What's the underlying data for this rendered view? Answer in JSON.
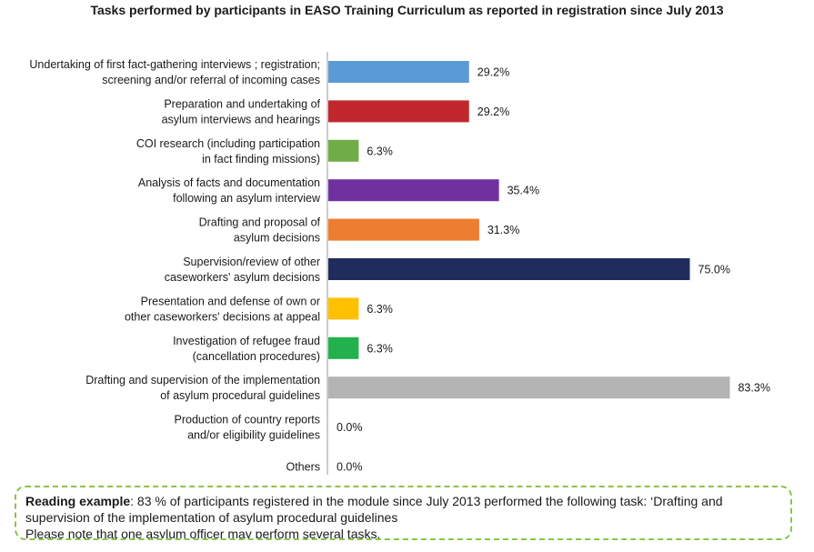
{
  "chart_data": {
    "type": "bar",
    "orientation": "horizontal",
    "title": "Tasks performed by participants in EASO Training Curriculum as reported in registration since July 2013",
    "categories": [
      [
        "Undertaking of first fact-gathering interviews ; registration;",
        "screening and/or referral of incoming cases"
      ],
      [
        "Preparation and undertaking of",
        "asylum interviews and hearings"
      ],
      [
        "COI research (including participation",
        "in fact finding missions)"
      ],
      [
        "Analysis of facts and documentation",
        "following an asylum interview"
      ],
      [
        "Drafting and proposal of",
        "asylum decisions"
      ],
      [
        "Supervision/review of other",
        "caseworkers' asylum decisions"
      ],
      [
        "Presentation and defense of own or",
        "other caseworkers' decisions at appeal"
      ],
      [
        "Investigation of refugee fraud",
        "(cancellation procedures)"
      ],
      [
        "Drafting and supervision of the implementation",
        "of asylum procedural guidelines"
      ],
      [
        "Production of country reports",
        "and/or eligibility guidelines"
      ],
      [
        "Others"
      ]
    ],
    "values": [
      29.2,
      29.2,
      6.3,
      35.4,
      31.3,
      75.0,
      6.3,
      6.3,
      83.3,
      0.0,
      0.0
    ],
    "value_labels": [
      "29.2%",
      "29.2%",
      "6.3%",
      "35.4%",
      "31.3%",
      "75.0%",
      "6.3%",
      "6.3%",
      "83.3%",
      "0.0%",
      "0.0%"
    ],
    "colors": [
      "#5b9bd5",
      "#c0282d",
      "#70ad47",
      "#7030a0",
      "#ed7d31",
      "#1f2d5c",
      "#ffc000",
      "#23b14d",
      "#b4b4b4",
      "#b4b4b4",
      "#b4b4b4"
    ],
    "xlim": [
      0,
      100
    ],
    "grid": false,
    "legend": "none"
  },
  "note": {
    "lead": "Reading example",
    "text": ": 83 % of participants registered in the module since July 2013 performed the following task: ‘Drafting and supervision of the implementation of asylum procedural guidelines",
    "line2": "Please note that one asylum officer may perform several tasks."
  }
}
